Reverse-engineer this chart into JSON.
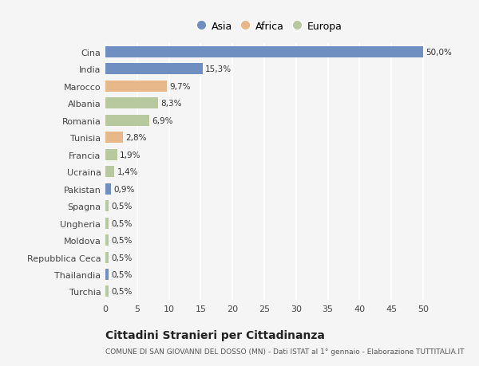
{
  "categories": [
    "Turchia",
    "Thailandia",
    "Repubblica Ceca",
    "Moldova",
    "Ungheria",
    "Spagna",
    "Pakistan",
    "Ucraina",
    "Francia",
    "Tunisia",
    "Romania",
    "Albania",
    "Marocco",
    "India",
    "Cina"
  ],
  "values": [
    0.5,
    0.5,
    0.5,
    0.5,
    0.5,
    0.5,
    0.9,
    1.4,
    1.9,
    2.8,
    6.9,
    8.3,
    9.7,
    15.3,
    50.0
  ],
  "labels": [
    "0,5%",
    "0,5%",
    "0,5%",
    "0,5%",
    "0,5%",
    "0,5%",
    "0,9%",
    "1,4%",
    "1,9%",
    "2,8%",
    "6,9%",
    "8,3%",
    "9,7%",
    "15,3%",
    "50,0%"
  ],
  "colors": [
    "#b8c9a0",
    "#6e8fbf",
    "#b8c9a0",
    "#b8c9a0",
    "#b8c9a0",
    "#b8c9a0",
    "#6e8fbf",
    "#b8c9a0",
    "#b8c9a0",
    "#e8b88a",
    "#b8c9a0",
    "#b8c9a0",
    "#e8b88a",
    "#6e8fbf",
    "#6e8fbf"
  ],
  "legend": [
    {
      "label": "Asia",
      "color": "#6e8fbf"
    },
    {
      "label": "Africa",
      "color": "#e8b88a"
    },
    {
      "label": "Europa",
      "color": "#b8c9a0"
    }
  ],
  "xlim": [
    0,
    52
  ],
  "xticks": [
    0,
    5,
    10,
    15,
    20,
    25,
    30,
    35,
    40,
    45,
    50
  ],
  "title": "Cittadini Stranieri per Cittadinanza",
  "subtitle": "COMUNE DI SAN GIOVANNI DEL DOSSO (MN) - Dati ISTAT al 1° gennaio - Elaborazione TUTTITALIA.IT",
  "bg_color": "#f5f5f5",
  "grid_color": "#ffffff",
  "bar_height": 0.65
}
